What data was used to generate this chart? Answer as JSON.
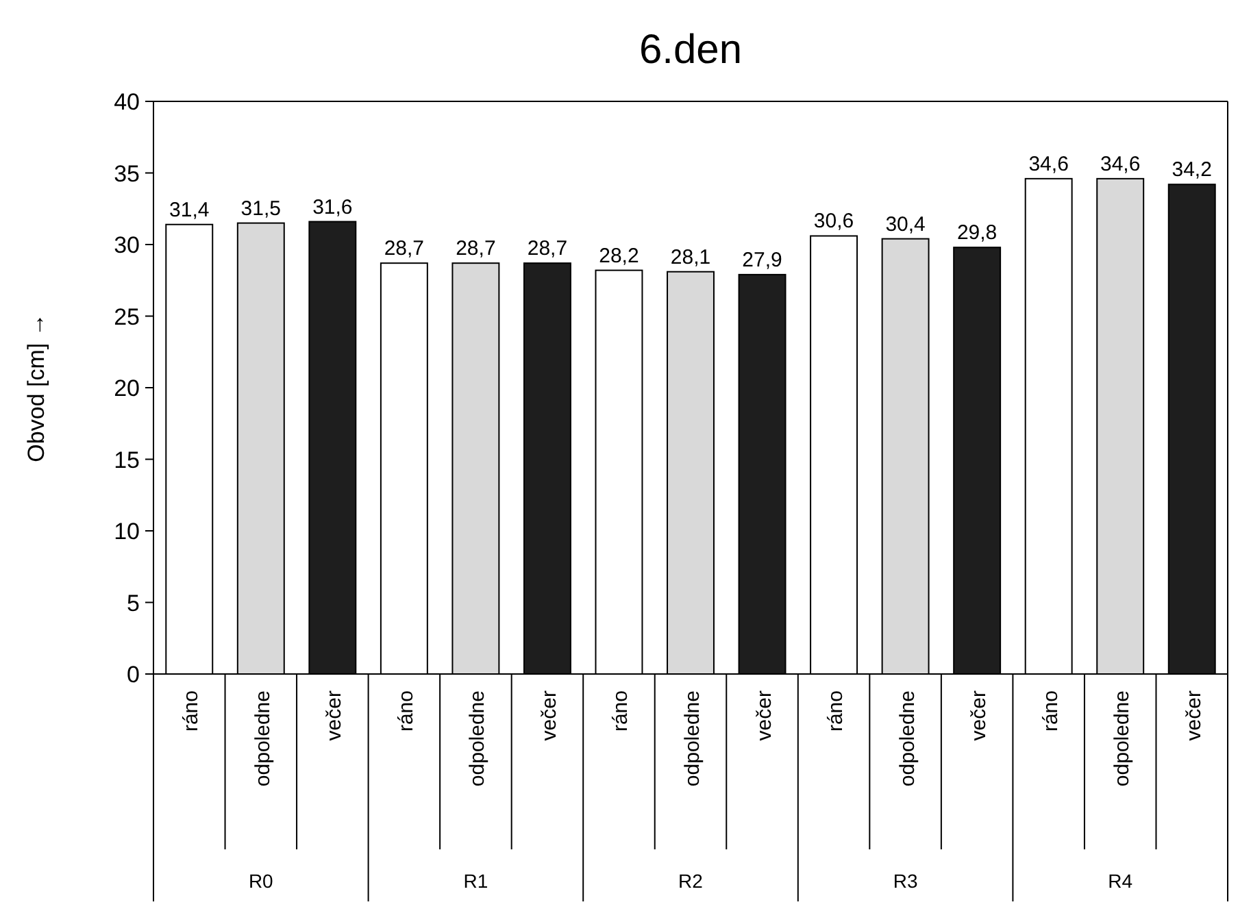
{
  "chart_data": {
    "type": "bar",
    "title": "6.den",
    "ylabel": "Obvod [cm] →",
    "categories": [
      "ráno",
      "odpoledne",
      "večer",
      "ráno",
      "odpoledne",
      "večer",
      "ráno",
      "odpoledne",
      "večer",
      "ráno",
      "odpoledne",
      "večer",
      "ráno",
      "odpoledne",
      "večer"
    ],
    "values": [
      31.4,
      31.5,
      31.6,
      28.7,
      28.7,
      28.7,
      28.2,
      28.1,
      27.9,
      30.6,
      30.4,
      29.8,
      34.6,
      34.6,
      34.2
    ],
    "colors": [
      "#ffffff",
      "#d9d9d9",
      "#1e1e1e",
      "#ffffff",
      "#d9d9d9",
      "#1e1e1e",
      "#ffffff",
      "#d9d9d9",
      "#1e1e1e",
      "#ffffff",
      "#d9d9d9",
      "#1e1e1e",
      "#ffffff",
      "#d9d9d9",
      "#1e1e1e"
    ],
    "value_labels": [
      "31,4",
      "31,5",
      "31,6",
      "28,7",
      "28,7",
      "28,7",
      "28,2",
      "28,1",
      "27,9",
      "30,6",
      "30,4",
      "29,8",
      "34,6",
      "34,6",
      "34,2"
    ],
    "annotations": [
      "R0",
      "R1",
      "R2",
      "R3",
      "R4"
    ],
    "ylim": [
      0,
      40
    ],
    "yticks": [
      0,
      5,
      10,
      15,
      20,
      25,
      30,
      35,
      40
    ],
    "grid": false
  }
}
